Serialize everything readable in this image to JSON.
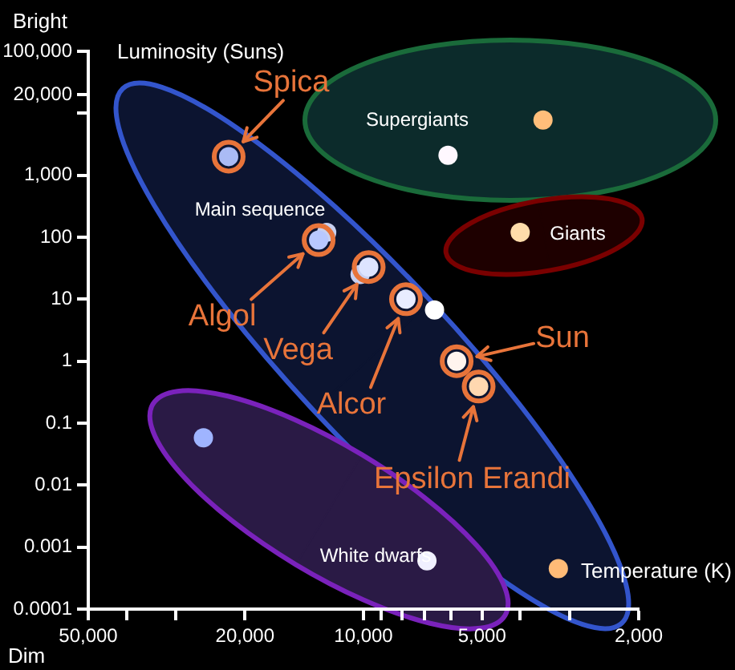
{
  "chart_data": {
    "type": "scatter",
    "xlabel": "Temperature (K)",
    "ylabel": "Luminosity (Suns)",
    "x": [
      12400,
      10200,
      22000,
      13000,
      9700,
      7800,
      6600,
      5800,
      5100,
      3200,
      3500,
      6100,
      4000,
      25500,
      6900
    ],
    "values": [
      120,
      25,
      2000,
      90,
      33,
      10,
      6.7,
      1,
      0.39,
      0.00045,
      7800,
      2100,
      120,
      0.058,
      0.0006
    ],
    "colors": [
      "#c8d0f0",
      "#c8d0f0",
      "#aabbf5",
      "#b8c8ff",
      "#dde4ff",
      "#e8ecff",
      "#ffffff",
      "#fff4ee",
      "#ffd8b0",
      "#ffbb77",
      "#ffbe7a",
      "#fff8ff",
      "#ffdcaa",
      "#9fb4ff",
      "#f0f0ff"
    ],
    "log": "xy",
    "xlim": [
      50000,
      2000
    ],
    "xticks": [
      {
        "value": 50000,
        "label": "50,000"
      },
      {
        "value": 40000,
        "label": null
      },
      {
        "value": 30000,
        "label": null
      },
      {
        "value": 20000,
        "label": "20,000"
      },
      {
        "value": 10000,
        "label": "10,000"
      },
      {
        "value": 9000,
        "label": null
      },
      {
        "value": 8000,
        "label": null
      },
      {
        "value": 7000,
        "label": null
      },
      {
        "value": 6000,
        "label": null
      },
      {
        "value": 5000,
        "label": "5,000"
      },
      {
        "value": 4000,
        "label": null
      },
      {
        "value": 3000,
        "label": null
      },
      {
        "value": 2000,
        "label": "2,000"
      }
    ],
    "ylim": [
      0.0001,
      100000
    ],
    "yticks": [
      {
        "value": 100000,
        "label": "100,000"
      },
      {
        "value": 20000,
        "label": "20,000"
      },
      {
        "value": 10000,
        "label": null
      },
      {
        "value": 1000,
        "label": "1,000"
      },
      100,
      10,
      1,
      0.1,
      0.01,
      0.001,
      0.0001
    ],
    "grid": false,
    "legend": false,
    "marker": "circle",
    "annotations": [
      "Bright",
      "Dim",
      "Supergiants",
      "Main sequence",
      "Giants",
      "White dwarfs",
      {
        "text": "Spica",
        "x": 22000,
        "y": 2000
      },
      {
        "text": "Algol",
        "x": 13000,
        "y": 90
      },
      {
        "text": "Vega",
        "x": 9700,
        "y": 33
      },
      {
        "text": "Alcor",
        "x": 7800,
        "y": 10
      },
      {
        "text": "Sun",
        "x": 5800,
        "y": 1
      },
      {
        "text": "Epsilon Erandi",
        "x": 5100,
        "y": 0.39
      }
    ]
  }
}
